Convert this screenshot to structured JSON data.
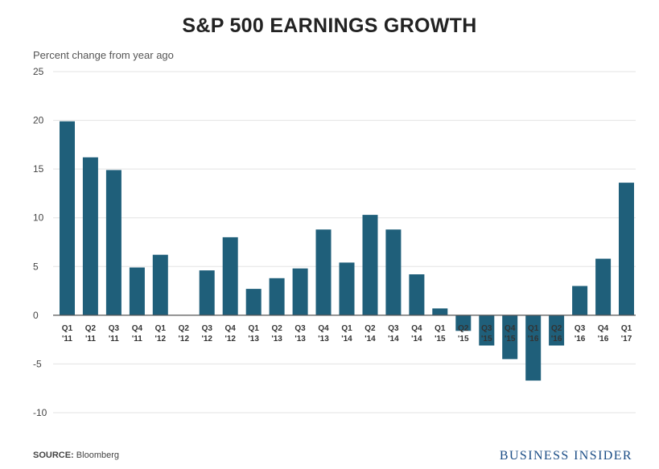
{
  "chart_data": {
    "type": "bar",
    "title": "S&P 500 EARNINGS GROWTH",
    "ylabel": "Percent change from year ago",
    "xlabel": "",
    "ylim": [
      -10,
      25
    ],
    "yticks": [
      25,
      20,
      15,
      10,
      5,
      0,
      -5,
      -10
    ],
    "grid": true,
    "bar_color": "#1f5f7a",
    "categories": [
      {
        "q": "Q1",
        "y": "'11"
      },
      {
        "q": "Q2",
        "y": "'11"
      },
      {
        "q": "Q3",
        "y": "'11"
      },
      {
        "q": "Q4",
        "y": "'11"
      },
      {
        "q": "Q1",
        "y": "'12"
      },
      {
        "q": "Q2",
        "y": "'12"
      },
      {
        "q": "Q3",
        "y": "'12"
      },
      {
        "q": "Q4",
        "y": "'12"
      },
      {
        "q": "Q1",
        "y": "'13"
      },
      {
        "q": "Q2",
        "y": "'13"
      },
      {
        "q": "Q3",
        "y": "'13"
      },
      {
        "q": "Q4",
        "y": "'13"
      },
      {
        "q": "Q1",
        "y": "'14"
      },
      {
        "q": "Q2",
        "y": "'14"
      },
      {
        "q": "Q3",
        "y": "'14"
      },
      {
        "q": "Q4",
        "y": "'14"
      },
      {
        "q": "Q1",
        "y": "'15"
      },
      {
        "q": "Q2",
        "y": "'15"
      },
      {
        "q": "Q3",
        "y": "'15"
      },
      {
        "q": "Q4",
        "y": "'15"
      },
      {
        "q": "Q1",
        "y": "'16"
      },
      {
        "q": "Q2",
        "y": "'16"
      },
      {
        "q": "Q3",
        "y": "'16"
      },
      {
        "q": "Q4",
        "y": "'16"
      },
      {
        "q": "Q1",
        "y": "'17"
      }
    ],
    "values": [
      19.9,
      16.2,
      14.9,
      4.9,
      6.2,
      0,
      4.6,
      8.0,
      2.7,
      3.8,
      4.8,
      8.8,
      5.4,
      10.3,
      8.8,
      4.2,
      0.7,
      -1.6,
      -3.1,
      -4.5,
      -6.7,
      -3.1,
      3.0,
      5.8,
      13.6
    ]
  },
  "source": {
    "label": "SOURCE:",
    "text": "Bloomberg"
  },
  "brand": "BUSINESS INSIDER"
}
